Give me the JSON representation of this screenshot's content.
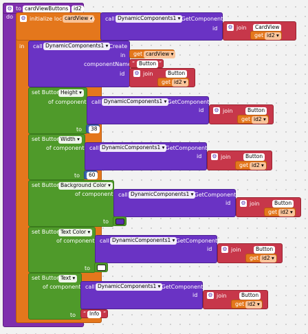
{
  "proc": {
    "to": "to",
    "name": "cardViewButtons",
    "param": "id2",
    "do": "do"
  },
  "init": {
    "label": "initialize local",
    "var": "cardView",
    "to": "to",
    "in": "in"
  },
  "getcomp": {
    "call": "call",
    "component": "DynamicComponents1",
    "method": ".GetComponent",
    "id": "id"
  },
  "join": {
    "label": "join"
  },
  "get": {
    "label": "get",
    "var": "id2"
  },
  "create": {
    "call": "call",
    "component": "DynamicComponents1",
    "method": ".Create",
    "in": "in",
    "componentName": "componentName",
    "id": "id",
    "in_var": "cardView",
    "type": "Button"
  },
  "setters": [
    {
      "label": "set Button.",
      "prop": "Height",
      "of_component": "of component",
      "to": "to",
      "value": "38"
    },
    {
      "label": "set Button.",
      "prop": "Width",
      "of_component": "of component",
      "to": "to",
      "value": "60"
    },
    {
      "label": "set Button.",
      "prop": "Background Color",
      "of_component": "of component",
      "to": "to",
      "color": "#5b2fb0"
    },
    {
      "label": "set Button.",
      "prop": "Text Color",
      "of_component": "of component",
      "to": "to",
      "color": "#ffffff"
    },
    {
      "label": "set Button.",
      "prop": "Text",
      "of_component": "of component",
      "to": "to",
      "value": "Info"
    }
  ],
  "strings": {
    "cardview": "CardView",
    "button": "Button"
  }
}
